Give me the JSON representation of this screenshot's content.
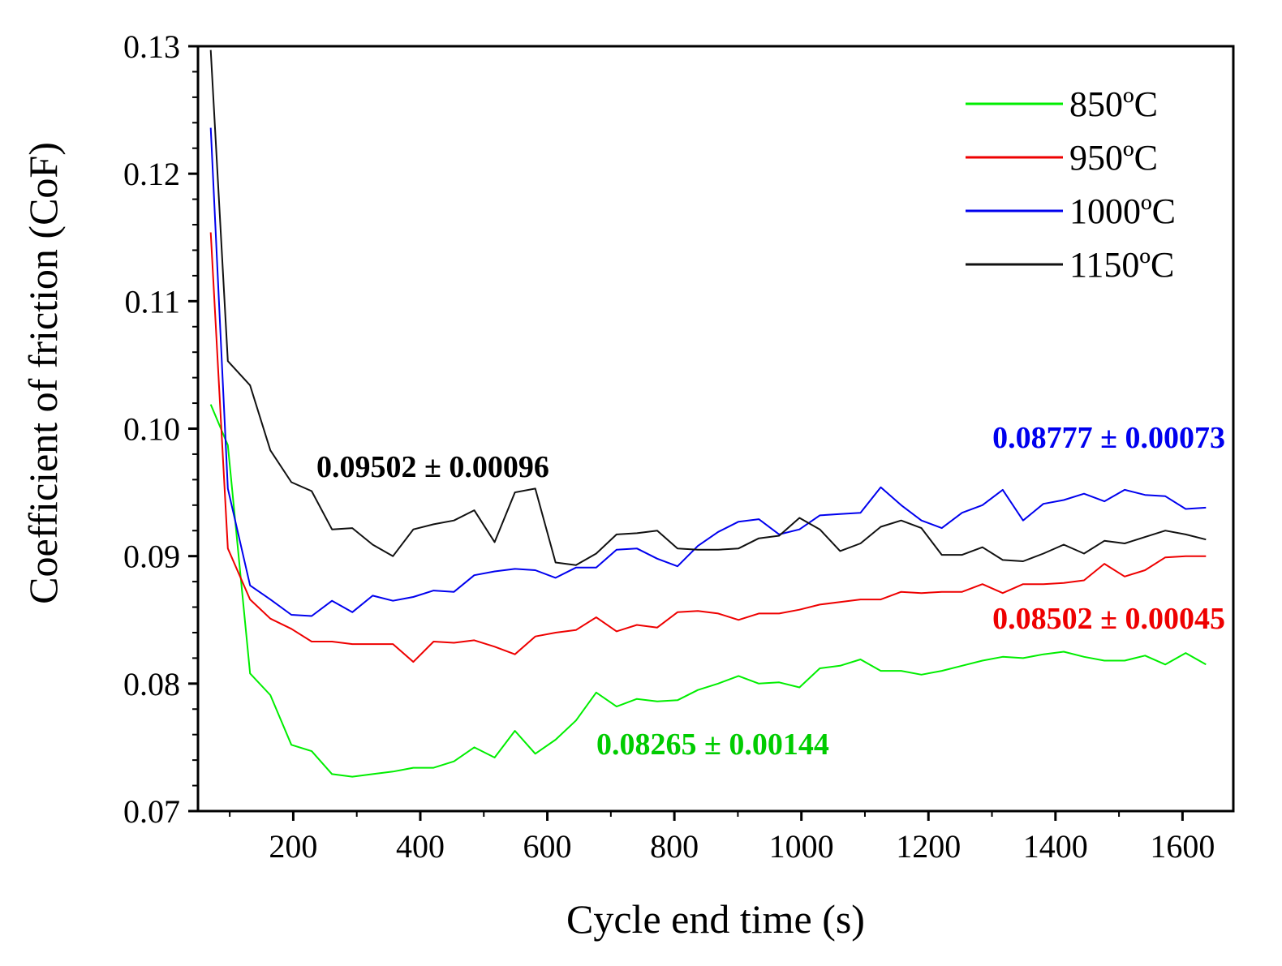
{
  "chart_data": {
    "type": "line",
    "xlabel": "Cycle end time (s)",
    "ylabel": "Coefficient of friction (CoF)",
    "xlim": [
      50,
      1680
    ],
    "ylim": [
      0.07,
      0.13
    ],
    "x_ticks": [
      200,
      400,
      600,
      800,
      1000,
      1200,
      1400,
      1600
    ],
    "x_tick_labels": [
      "200",
      "400",
      "600",
      "800",
      "1000",
      "1200",
      "1400",
      "1600"
    ],
    "y_ticks": [
      0.07,
      0.08,
      0.09,
      0.1,
      0.11,
      0.12,
      0.13
    ],
    "y_tick_labels": [
      "0.07",
      "0.08",
      "0.09",
      "0.10",
      "0.11",
      "0.12",
      "0.13"
    ],
    "grid": false,
    "legend_position": "top-right",
    "x": [
      70,
      97,
      132,
      164,
      197,
      229,
      261,
      293,
      325,
      357,
      389,
      421,
      453,
      485,
      517,
      549,
      581,
      613,
      645,
      677,
      709,
      741,
      773,
      805,
      837,
      869,
      901,
      933,
      965,
      997,
      1029,
      1061,
      1093,
      1125,
      1157,
      1189,
      1221,
      1253,
      1285,
      1317,
      1349,
      1381,
      1413,
      1445,
      1477,
      1509,
      1541,
      1573,
      1605,
      1637
    ],
    "series": [
      {
        "name": "850ºC",
        "color": "#00ee00",
        "values": [
          0.1019,
          0.0987,
          0.0808,
          0.0791,
          0.0752,
          0.0747,
          0.0729,
          0.0727,
          0.0729,
          0.0731,
          0.0734,
          0.0734,
          0.0739,
          0.075,
          0.0742,
          0.0763,
          0.0745,
          0.0756,
          0.0771,
          0.0793,
          0.0782,
          0.0788,
          0.0786,
          0.0787,
          0.0795,
          0.08,
          0.0806,
          0.08,
          0.0801,
          0.0797,
          0.0812,
          0.0814,
          0.0819,
          0.081,
          0.081,
          0.0807,
          0.081,
          0.0814,
          0.0818,
          0.0821,
          0.082,
          0.0823,
          0.0825,
          0.0821,
          0.0818,
          0.0818,
          0.0822,
          0.0815,
          0.0824,
          0.0815
        ]
      },
      {
        "name": "950ºC",
        "color": "#ee0000",
        "values": [
          0.1154,
          0.0906,
          0.0866,
          0.0851,
          0.0843,
          0.0833,
          0.0833,
          0.0831,
          0.0831,
          0.0831,
          0.0817,
          0.0833,
          0.0832,
          0.0834,
          0.0829,
          0.0823,
          0.0837,
          0.084,
          0.0842,
          0.0852,
          0.0841,
          0.0846,
          0.0844,
          0.0856,
          0.0857,
          0.0855,
          0.085,
          0.0855,
          0.0855,
          0.0858,
          0.0862,
          0.0864,
          0.0866,
          0.0866,
          0.0872,
          0.0871,
          0.0872,
          0.0872,
          0.0878,
          0.0871,
          0.0878,
          0.0878,
          0.0879,
          0.0881,
          0.0894,
          0.0884,
          0.0889,
          0.0899,
          0.09,
          0.09
        ]
      },
      {
        "name": "1000ºC",
        "color": "#0000ee",
        "values": [
          0.1236,
          0.0953,
          0.0877,
          0.0866,
          0.0854,
          0.0853,
          0.0865,
          0.0856,
          0.0869,
          0.0865,
          0.0868,
          0.0873,
          0.0872,
          0.0885,
          0.0888,
          0.089,
          0.0889,
          0.0883,
          0.0891,
          0.0891,
          0.0905,
          0.0906,
          0.0898,
          0.0892,
          0.0908,
          0.0919,
          0.0927,
          0.0929,
          0.0917,
          0.0921,
          0.0932,
          0.0933,
          0.0934,
          0.0954,
          0.094,
          0.0928,
          0.0922,
          0.0934,
          0.094,
          0.0952,
          0.0928,
          0.0941,
          0.0944,
          0.0949,
          0.0943,
          0.0952,
          0.0948,
          0.0947,
          0.0937,
          0.0938
        ]
      },
      {
        "name": "1150ºC",
        "color": "#111111",
        "values": [
          0.1297,
          0.1053,
          0.1034,
          0.0983,
          0.0958,
          0.0951,
          0.0921,
          0.0922,
          0.0909,
          0.09,
          0.0921,
          0.0925,
          0.0928,
          0.0936,
          0.0911,
          0.095,
          0.0953,
          0.0895,
          0.0893,
          0.0902,
          0.0917,
          0.0918,
          0.092,
          0.0906,
          0.0905,
          0.0905,
          0.0906,
          0.0914,
          0.0916,
          0.093,
          0.0921,
          0.0904,
          0.091,
          0.0923,
          0.0928,
          0.0922,
          0.0901,
          0.0901,
          0.0907,
          0.0897,
          0.0896,
          0.0902,
          0.0909,
          0.0902,
          0.0912,
          0.091,
          0.0915,
          0.092,
          0.0917,
          0.0913
        ]
      }
    ],
    "annotations": [
      {
        "text": "0.09502 ± 0.00096",
        "color": "#000000",
        "series": "1150ºC"
      },
      {
        "text": "0.08777 ± 0.00073",
        "color": "#0000ee",
        "series": "1000ºC"
      },
      {
        "text": "0.08502 ± 0.00045",
        "color": "#ee0000",
        "series": "950ºC"
      },
      {
        "text": "0.08265 ± 0.00144",
        "color": "#00cc00",
        "series": "850ºC"
      }
    ]
  }
}
